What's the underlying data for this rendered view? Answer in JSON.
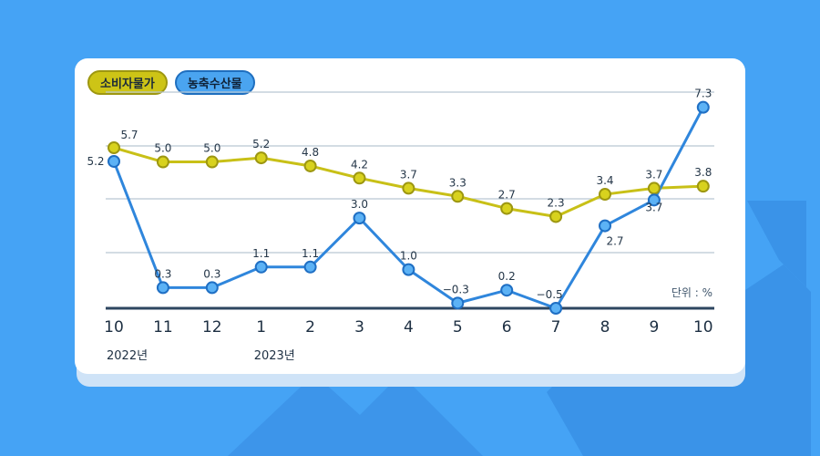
{
  "legend": {
    "cpi_label": "소비자물가",
    "agri_label": "농축수산물"
  },
  "unit_label": "단위 : %",
  "colors": {
    "cpi": "#c8c017",
    "agri": "#2f86dc",
    "background": "#45a3f5"
  },
  "chart_data": {
    "type": "line",
    "x": [
      "10",
      "11",
      "12",
      "1",
      "2",
      "3",
      "4",
      "5",
      "6",
      "7",
      "8",
      "9",
      "10"
    ],
    "year_labels": [
      {
        "index": 0,
        "text": "2022년"
      },
      {
        "index": 3,
        "text": "2023년"
      }
    ],
    "series": [
      {
        "name": "소비자물가",
        "values": [
          5.7,
          5.0,
          5.0,
          5.2,
          4.8,
          4.2,
          3.7,
          3.3,
          2.7,
          2.3,
          3.4,
          3.7,
          3.8
        ],
        "labels": [
          "5.7",
          "5.0",
          "5.0",
          "5.2",
          "4.8",
          "4.2",
          "3.7",
          "3.3",
          "2.7",
          "2.3",
          "3.4",
          "3.7",
          "3.8"
        ]
      },
      {
        "name": "농축수산물",
        "values": [
          5.2,
          0.3,
          0.3,
          1.1,
          1.1,
          3.0,
          1.0,
          -0.3,
          0.2,
          -0.5,
          2.7,
          3.7,
          7.3
        ],
        "labels": [
          "5.2",
          "0.3",
          "0.3",
          "1.1",
          "1.1",
          "3.0",
          "1.0",
          "−0.3",
          "0.2",
          "−0.5",
          "2.7",
          "3.7",
          "7.3"
        ]
      }
    ],
    "grid": true,
    "legend_position": "top-left"
  }
}
